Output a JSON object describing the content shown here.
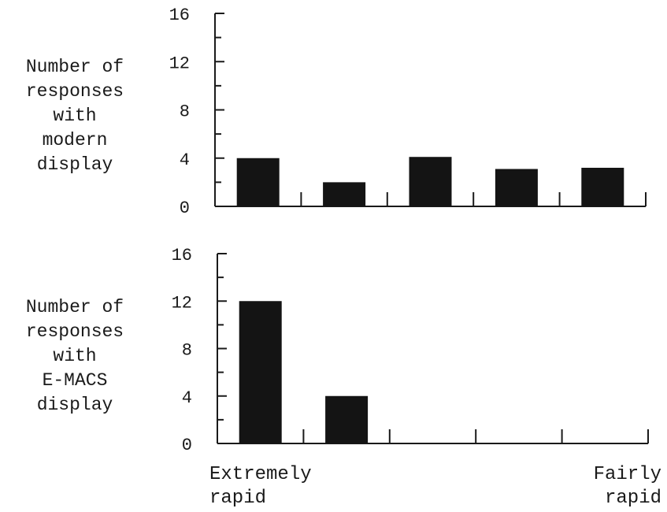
{
  "chart_data": [
    {
      "type": "bar",
      "ylabel": [
        "Number of",
        "responses",
        "with",
        "modern",
        "display"
      ],
      "ylim": [
        0,
        16
      ],
      "yticks": [
        "0",
        "4",
        "8",
        "12",
        "16"
      ],
      "values": [
        4,
        2,
        4.1,
        3.1,
        3.2
      ],
      "bar_color": "#141414"
    },
    {
      "type": "bar",
      "ylabel": [
        "Number of",
        "responses",
        "with",
        "E-MACS",
        "display"
      ],
      "ylim": [
        0,
        16
      ],
      "yticks": [
        "0",
        "4",
        "8",
        "12",
        "16"
      ],
      "values": [
        12,
        4,
        0,
        0,
        0
      ],
      "bar_color": "#141414"
    }
  ],
  "x_caption_left": [
    "Extremely",
    "rapid"
  ],
  "x_caption_right": [
    "Fairly",
    "rapid"
  ]
}
